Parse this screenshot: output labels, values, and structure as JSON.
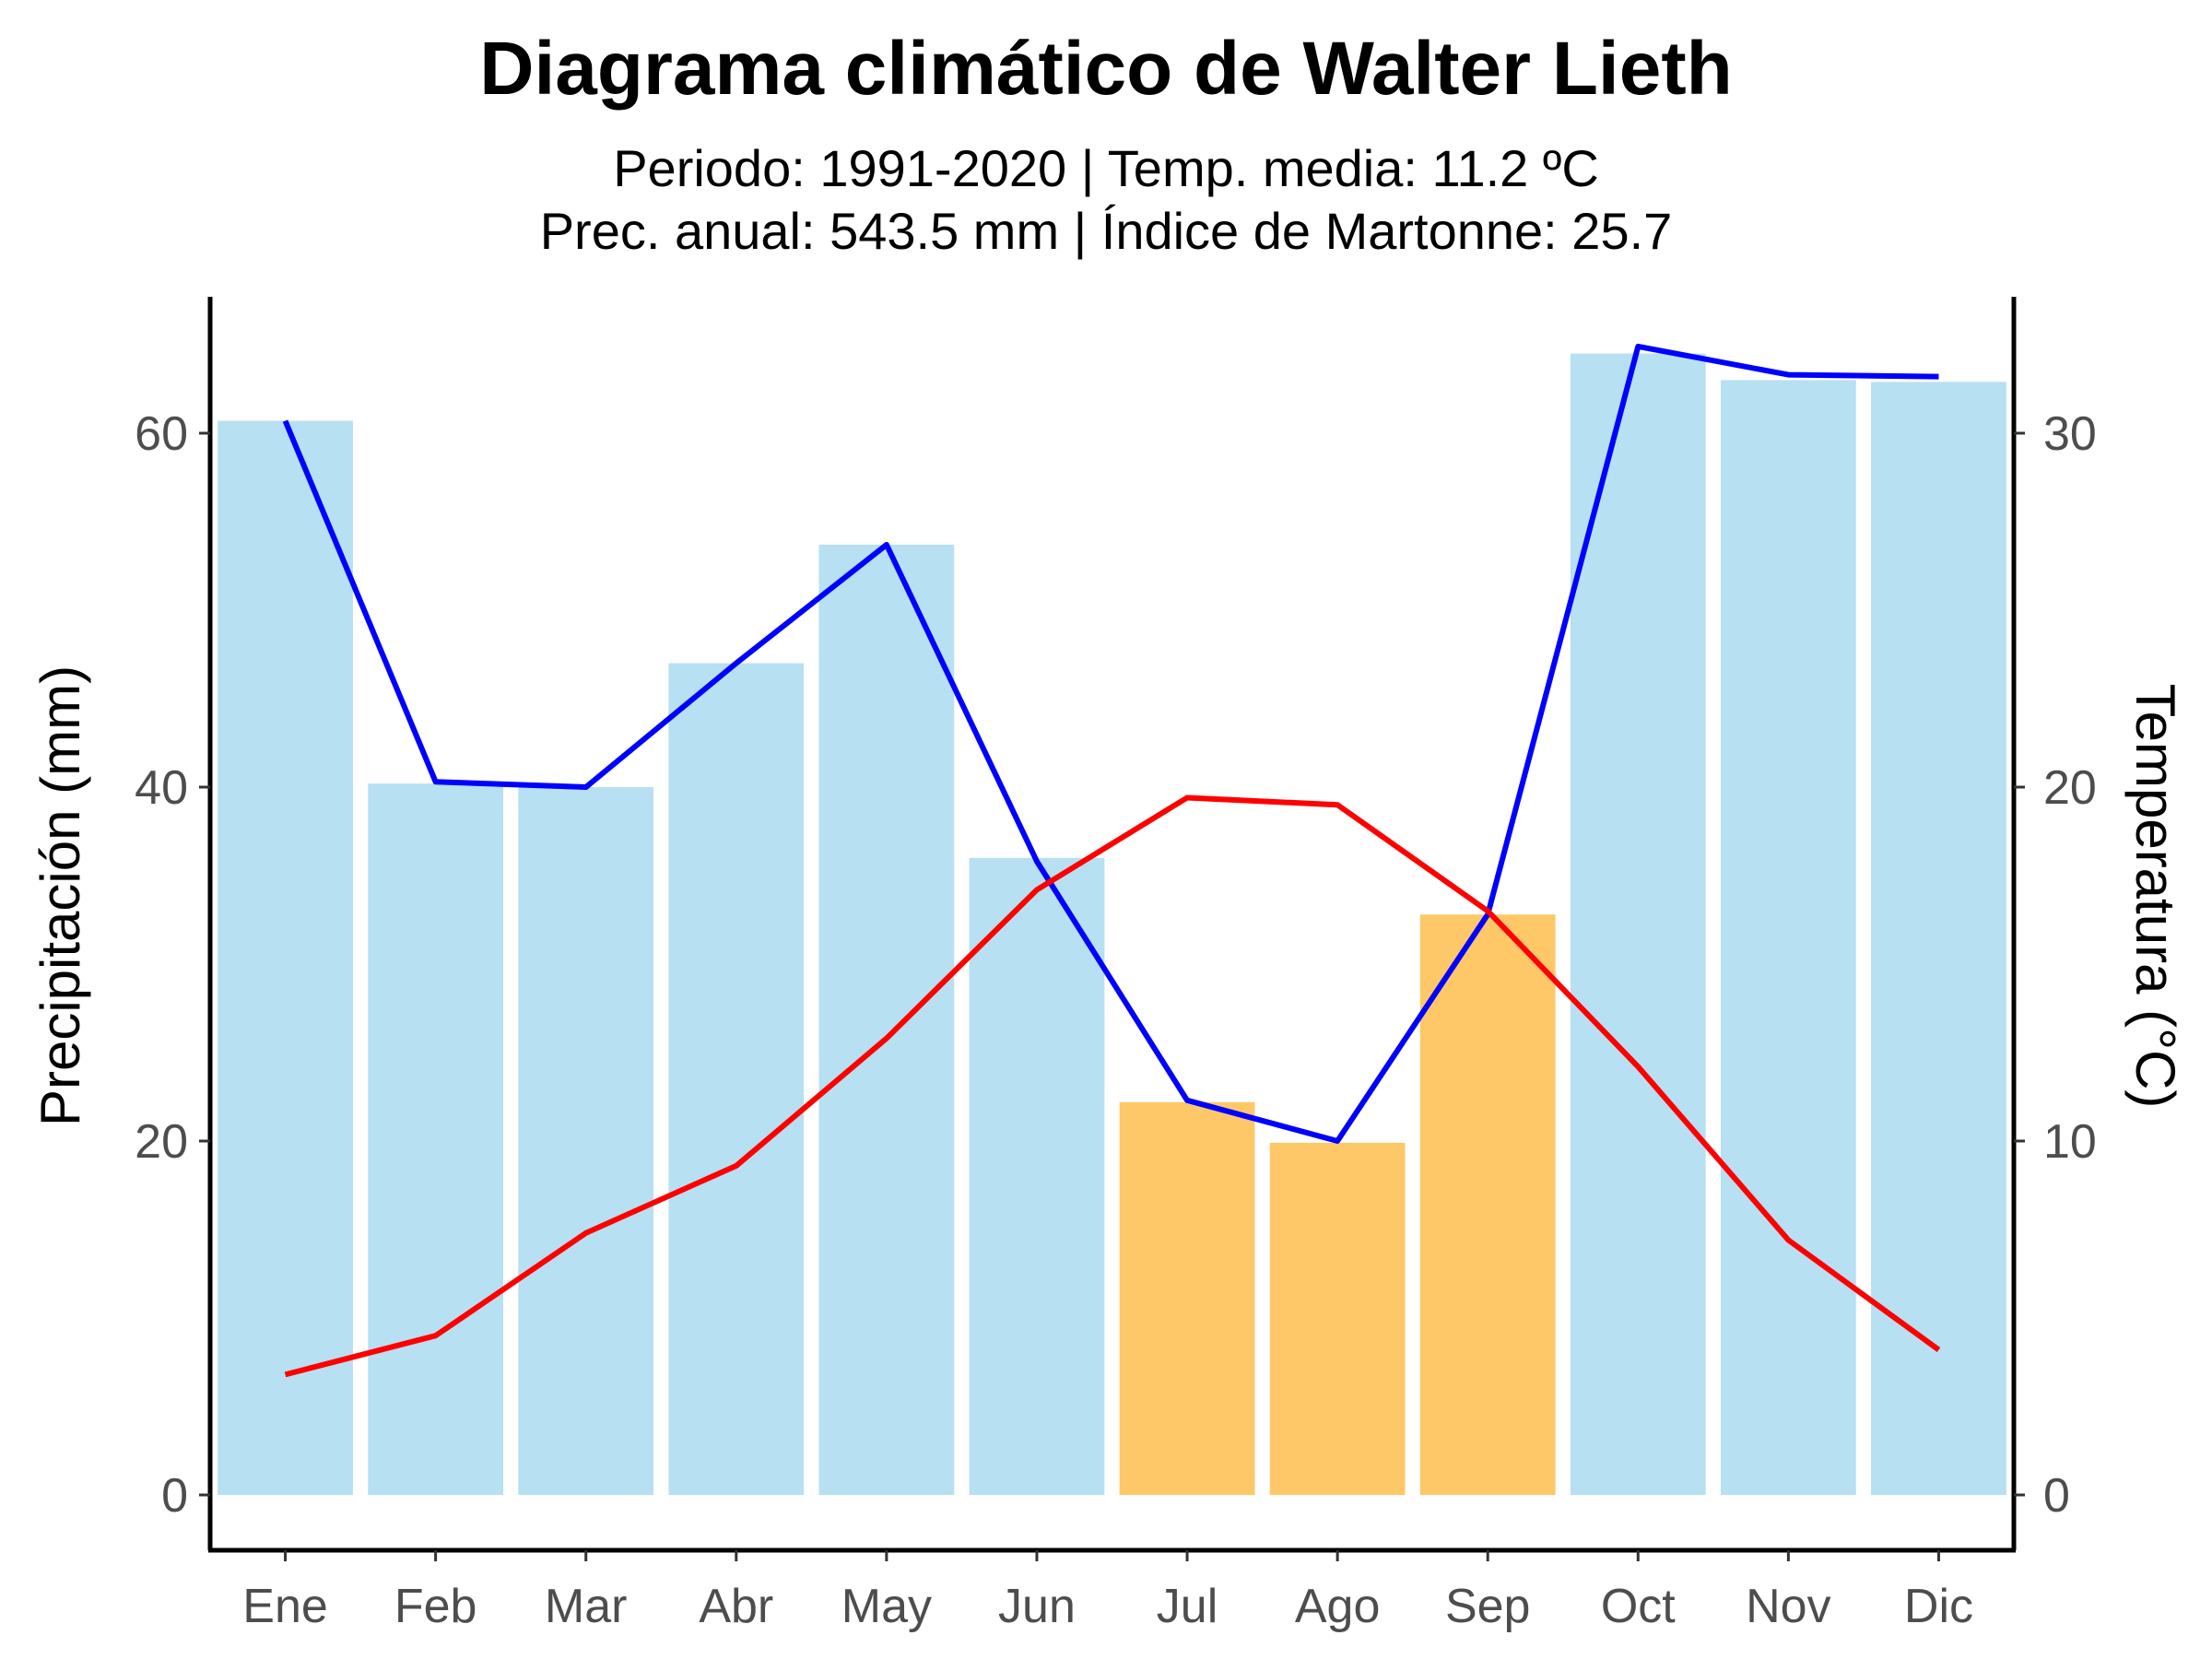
{
  "chart_data": {
    "type": "bar+line",
    "title": "Diagrama climático de Walter Lieth",
    "subtitle_line1": "Periodo: 1991-2020 | Temp. media: 11.2 ºC",
    "subtitle_line2": "Prec. anual: 543.5 mm | Índice de Martonne: 25.7",
    "categories": [
      "Ene",
      "Feb",
      "Mar",
      "Abr",
      "May",
      "Jun",
      "Jul",
      "Ago",
      "Sep",
      "Oct",
      "Nov",
      "Dic"
    ],
    "ylabel_left": "Precipitación (mm)",
    "ylabel_right": "Temperatura (°C)",
    "ylim_left": [
      0,
      68
    ],
    "ylim_right": [
      0,
      34
    ],
    "yticks_left": [
      0,
      20,
      40,
      60
    ],
    "yticks_right": [
      0,
      10,
      20,
      30
    ],
    "series": [
      {
        "name": "Precipitación (barras)",
        "kind": "bar",
        "axis": "left",
        "values": [
          60.7,
          40.2,
          40.0,
          47.0,
          53.7,
          36.0,
          22.2,
          19.9,
          32.8,
          64.5,
          63.0,
          62.9
        ],
        "dry": [
          false,
          false,
          false,
          false,
          false,
          false,
          true,
          true,
          true,
          false,
          false,
          false
        ]
      },
      {
        "name": "Precipitación (línea)",
        "kind": "line",
        "axis": "left",
        "values": [
          60.7,
          40.3,
          40.0,
          47.0,
          53.7,
          35.8,
          22.3,
          20.0,
          32.8,
          64.9,
          63.3,
          63.2
        ]
      },
      {
        "name": "Temperatura",
        "kind": "line",
        "axis": "right",
        "values": [
          3.4,
          4.5,
          7.4,
          9.3,
          12.9,
          17.1,
          19.7,
          19.5,
          16.5,
          12.1,
          7.2,
          4.1
        ]
      }
    ],
    "colors": {
      "bar_wet": "#b7e0f2",
      "bar_dry": "#fec868",
      "precip_line": "#0000ff",
      "temp_line": "#ff0000",
      "axis": "#000000",
      "tick_text": "#4d4d4d"
    },
    "grid": false
  }
}
